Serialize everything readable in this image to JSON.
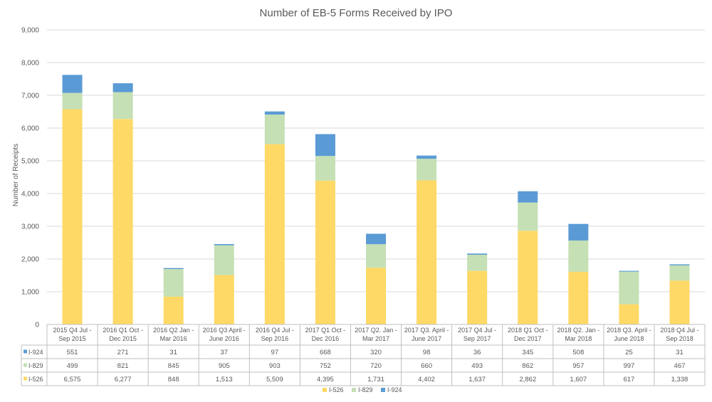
{
  "chart_data": {
    "type": "bar",
    "stacked": true,
    "title": "Number of EB-5 Forms Received by IPO",
    "ylabel": "Number  of Receipts",
    "ylim": [
      0,
      9000
    ],
    "yticks": [
      "0",
      "1,000",
      "2,000",
      "3,000",
      "4,000",
      "5,000",
      "6,000",
      "7,000",
      "8,000",
      "9,000"
    ],
    "grid": true,
    "legend_position": "bottom",
    "categories": [
      [
        "2015 Q4 Jul -",
        "Sep 2015"
      ],
      [
        "2016 Q1 Oct -",
        "Dec 2015"
      ],
      [
        "2016 Q2 Jan -",
        "Mar 2016"
      ],
      [
        "2016 Q3 April -",
        "June 2016"
      ],
      [
        "2016 Q4 Jul -",
        "Sep 2016"
      ],
      [
        "2017 Q1 Oct -",
        "Dec 2016"
      ],
      [
        "2017 Q2. Jan -",
        "Mar 2017"
      ],
      [
        "2017 Q3. April -",
        "June 2017"
      ],
      [
        "2017 Q4 Jul -",
        "Sep 2017"
      ],
      [
        "2018 Q1 Oct -",
        "Dec 2017"
      ],
      [
        "2018 Q2. Jan -",
        "Mar 2018"
      ],
      [
        "2018 Q3. April -",
        "June 2018"
      ],
      [
        "2018 Q4 Jul -",
        "Sep 2018"
      ]
    ],
    "series": [
      {
        "name": "I-526",
        "color": "#FFD966",
        "values": [
          6575,
          6277,
          848,
          1513,
          5509,
          4395,
          1731,
          4402,
          1637,
          2862,
          1607,
          617,
          1338
        ],
        "labels": [
          "6,575",
          "6,277",
          "848",
          "1,513",
          "5,509",
          "4,395",
          "1,731",
          "4,402",
          "1,637",
          "2,862",
          "1,607",
          "617",
          "1,338"
        ]
      },
      {
        "name": "I-829",
        "color": "#C5E0B4",
        "values": [
          499,
          821,
          845,
          905,
          903,
          752,
          720,
          660,
          493,
          862,
          957,
          997,
          467
        ],
        "labels": [
          "499",
          "821",
          "845",
          "905",
          "903",
          "752",
          "720",
          "660",
          "493",
          "862",
          "957",
          "997",
          "467"
        ]
      },
      {
        "name": "I-924",
        "color": "#5B9BD5",
        "values": [
          551,
          271,
          31,
          37,
          97,
          668,
          320,
          98,
          36,
          345,
          508,
          25,
          31
        ],
        "labels": [
          "551",
          "271",
          "31",
          "37",
          "97",
          "668",
          "320",
          "98",
          "36",
          "345",
          "508",
          "25",
          "31"
        ]
      }
    ],
    "table_row_order": [
      "I-924",
      "I-829",
      "I-526"
    ]
  }
}
